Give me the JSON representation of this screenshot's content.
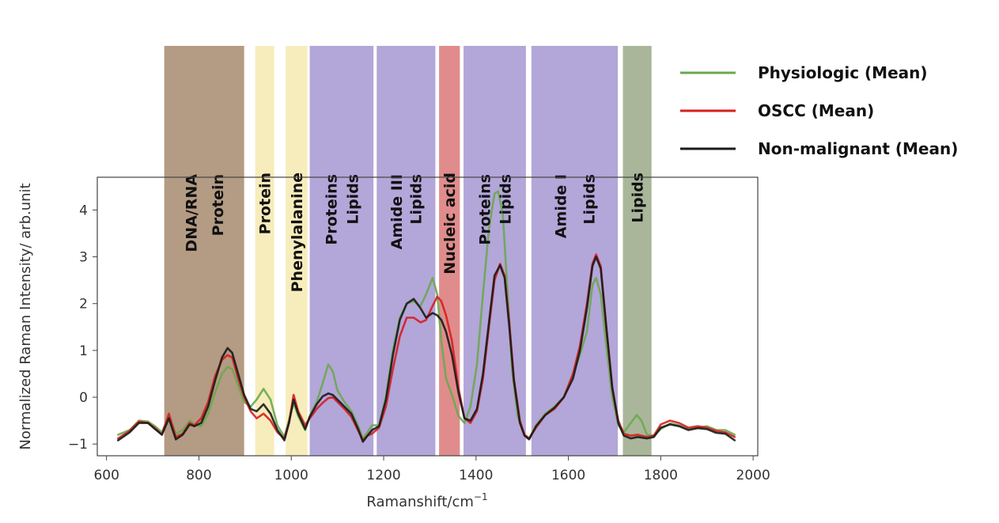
{
  "chart_data": {
    "type": "line",
    "xlabel": "Ramanshift/cm",
    "xlabel_superscript": "−1",
    "ylabel": "Normalized Raman Intensity/ arb.unit",
    "xlim": [
      580,
      2010
    ],
    "ylim": [
      -1.25,
      4.7
    ],
    "xticks": [
      600,
      800,
      1000,
      1200,
      1400,
      1600,
      1800,
      2000
    ],
    "yticks": [
      -1,
      0,
      1,
      2,
      3,
      4
    ],
    "grid": false,
    "legend_position": "outside-top-right",
    "bands": [
      {
        "from": 725,
        "to": 898,
        "color": "#b49b83",
        "labels": [
          "DNA/RNA",
          "Protein"
        ]
      },
      {
        "from": 922,
        "to": 963,
        "color": "#f7ecbb",
        "labels": [
          "Protein"
        ]
      },
      {
        "from": 988,
        "to": 1035,
        "color": "#f7ecbb",
        "labels": [
          "Phenylalanine"
        ]
      },
      {
        "from": 1040,
        "to": 1178,
        "color": "#b3a6d9",
        "labels": [
          "Proteins",
          "Lipids"
        ]
      },
      {
        "from": 1185,
        "to": 1312,
        "color": "#b3a6d9",
        "labels": [
          "Amide III",
          "Lipids"
        ]
      },
      {
        "from": 1320,
        "to": 1365,
        "color": "#e08c8c",
        "labels": [
          "Nucleic acid"
        ]
      },
      {
        "from": 1373,
        "to": 1508,
        "color": "#b3a6d9",
        "labels": [
          "Proteins",
          "Lipids"
        ]
      },
      {
        "from": 1520,
        "to": 1707,
        "color": "#b3a6d9",
        "labels": [
          "Amide I",
          "Lipids"
        ]
      },
      {
        "from": 1718,
        "to": 1780,
        "color": "#a9b69a",
        "labels": [
          "Lipids"
        ]
      }
    ],
    "series": [
      {
        "name": "Physiologic (Mean)",
        "color": "#6aa84f",
        "points": [
          [
            625,
            -0.8
          ],
          [
            650,
            -0.7
          ],
          [
            670,
            -0.5
          ],
          [
            690,
            -0.52
          ],
          [
            705,
            -0.62
          ],
          [
            720,
            -0.75
          ],
          [
            735,
            -0.4
          ],
          [
            750,
            -0.78
          ],
          [
            765,
            -0.7
          ],
          [
            780,
            -0.5
          ],
          [
            790,
            -0.58
          ],
          [
            805,
            -0.62
          ],
          [
            820,
            -0.35
          ],
          [
            835,
            0.1
          ],
          [
            850,
            0.5
          ],
          [
            862,
            0.65
          ],
          [
            872,
            0.6
          ],
          [
            885,
            0.25
          ],
          [
            898,
            -0.1
          ],
          [
            912,
            -0.2
          ],
          [
            925,
            -0.05
          ],
          [
            940,
            0.18
          ],
          [
            955,
            -0.05
          ],
          [
            970,
            -0.6
          ],
          [
            985,
            -0.85
          ],
          [
            995,
            -0.5
          ],
          [
            1005,
            -0.12
          ],
          [
            1015,
            -0.4
          ],
          [
            1030,
            -0.7
          ],
          [
            1040,
            -0.4
          ],
          [
            1055,
            -0.1
          ],
          [
            1068,
            0.3
          ],
          [
            1080,
            0.7
          ],
          [
            1090,
            0.55
          ],
          [
            1100,
            0.15
          ],
          [
            1115,
            -0.1
          ],
          [
            1130,
            -0.3
          ],
          [
            1145,
            -0.62
          ],
          [
            1155,
            -0.88
          ],
          [
            1165,
            -0.75
          ],
          [
            1175,
            -0.6
          ],
          [
            1190,
            -0.6
          ],
          [
            1205,
            0.0
          ],
          [
            1220,
            1.0
          ],
          [
            1235,
            1.7
          ],
          [
            1250,
            2.0
          ],
          [
            1265,
            2.05
          ],
          [
            1280,
            1.95
          ],
          [
            1292,
            2.2
          ],
          [
            1306,
            2.55
          ],
          [
            1316,
            2.2
          ],
          [
            1325,
            1.2
          ],
          [
            1335,
            0.4
          ],
          [
            1348,
            0.05
          ],
          [
            1362,
            -0.4
          ],
          [
            1375,
            -0.55
          ],
          [
            1388,
            -0.2
          ],
          [
            1402,
            0.7
          ],
          [
            1415,
            2.2
          ],
          [
            1428,
            3.6
          ],
          [
            1440,
            4.35
          ],
          [
            1448,
            4.4
          ],
          [
            1458,
            3.9
          ],
          [
            1468,
            2.3
          ],
          [
            1478,
            0.6
          ],
          [
            1490,
            -0.4
          ],
          [
            1505,
            -0.8
          ],
          [
            1515,
            -0.88
          ],
          [
            1530,
            -0.6
          ],
          [
            1550,
            -0.35
          ],
          [
            1570,
            -0.2
          ],
          [
            1590,
            0.0
          ],
          [
            1610,
            0.5
          ],
          [
            1625,
            0.9
          ],
          [
            1640,
            1.4
          ],
          [
            1652,
            2.4
          ],
          [
            1660,
            2.55
          ],
          [
            1670,
            2.2
          ],
          [
            1682,
            1.1
          ],
          [
            1695,
            0.0
          ],
          [
            1708,
            -0.6
          ],
          [
            1720,
            -0.75
          ],
          [
            1735,
            -0.55
          ],
          [
            1748,
            -0.38
          ],
          [
            1758,
            -0.5
          ],
          [
            1770,
            -0.8
          ],
          [
            1785,
            -0.82
          ],
          [
            1800,
            -0.68
          ],
          [
            1820,
            -0.56
          ],
          [
            1840,
            -0.6
          ],
          [
            1860,
            -0.68
          ],
          [
            1880,
            -0.65
          ],
          [
            1900,
            -0.62
          ],
          [
            1920,
            -0.7
          ],
          [
            1940,
            -0.7
          ],
          [
            1960,
            -0.8
          ]
        ]
      },
      {
        "name": "OSCC (Mean)",
        "color": "#d61f1f",
        "points": [
          [
            625,
            -0.88
          ],
          [
            650,
            -0.72
          ],
          [
            670,
            -0.52
          ],
          [
            690,
            -0.55
          ],
          [
            705,
            -0.66
          ],
          [
            720,
            -0.8
          ],
          [
            735,
            -0.35
          ],
          [
            750,
            -0.85
          ],
          [
            765,
            -0.78
          ],
          [
            780,
            -0.55
          ],
          [
            790,
            -0.6
          ],
          [
            805,
            -0.45
          ],
          [
            820,
            -0.1
          ],
          [
            835,
            0.45
          ],
          [
            850,
            0.8
          ],
          [
            862,
            0.9
          ],
          [
            872,
            0.85
          ],
          [
            885,
            0.4
          ],
          [
            898,
            0.0
          ],
          [
            912,
            -0.3
          ],
          [
            925,
            -0.45
          ],
          [
            940,
            -0.35
          ],
          [
            955,
            -0.5
          ],
          [
            970,
            -0.75
          ],
          [
            985,
            -0.88
          ],
          [
            995,
            -0.55
          ],
          [
            1005,
            0.05
          ],
          [
            1015,
            -0.3
          ],
          [
            1030,
            -0.6
          ],
          [
            1040,
            -0.45
          ],
          [
            1055,
            -0.25
          ],
          [
            1068,
            -0.12
          ],
          [
            1080,
            -0.02
          ],
          [
            1090,
            0.0
          ],
          [
            1100,
            -0.1
          ],
          [
            1115,
            -0.25
          ],
          [
            1130,
            -0.42
          ],
          [
            1145,
            -0.72
          ],
          [
            1155,
            -0.92
          ],
          [
            1165,
            -0.82
          ],
          [
            1175,
            -0.78
          ],
          [
            1190,
            -0.65
          ],
          [
            1205,
            -0.2
          ],
          [
            1220,
            0.6
          ],
          [
            1235,
            1.3
          ],
          [
            1250,
            1.7
          ],
          [
            1265,
            1.7
          ],
          [
            1280,
            1.6
          ],
          [
            1292,
            1.65
          ],
          [
            1306,
            1.95
          ],
          [
            1316,
            2.15
          ],
          [
            1325,
            2.05
          ],
          [
            1335,
            1.75
          ],
          [
            1348,
            1.2
          ],
          [
            1362,
            0.2
          ],
          [
            1375,
            -0.45
          ],
          [
            1388,
            -0.55
          ],
          [
            1402,
            -0.3
          ],
          [
            1415,
            0.4
          ],
          [
            1428,
            1.5
          ],
          [
            1440,
            2.5
          ],
          [
            1452,
            2.85
          ],
          [
            1462,
            2.6
          ],
          [
            1472,
            1.6
          ],
          [
            1482,
            0.4
          ],
          [
            1495,
            -0.5
          ],
          [
            1505,
            -0.8
          ],
          [
            1515,
            -0.88
          ],
          [
            1530,
            -0.65
          ],
          [
            1550,
            -0.38
          ],
          [
            1570,
            -0.25
          ],
          [
            1590,
            0.0
          ],
          [
            1610,
            0.5
          ],
          [
            1625,
            1.1
          ],
          [
            1640,
            2.0
          ],
          [
            1652,
            2.85
          ],
          [
            1660,
            3.05
          ],
          [
            1670,
            2.8
          ],
          [
            1682,
            1.5
          ],
          [
            1695,
            0.2
          ],
          [
            1708,
            -0.5
          ],
          [
            1720,
            -0.78
          ],
          [
            1735,
            -0.82
          ],
          [
            1750,
            -0.8
          ],
          [
            1770,
            -0.85
          ],
          [
            1785,
            -0.82
          ],
          [
            1800,
            -0.58
          ],
          [
            1820,
            -0.5
          ],
          [
            1840,
            -0.55
          ],
          [
            1860,
            -0.65
          ],
          [
            1880,
            -0.62
          ],
          [
            1900,
            -0.65
          ],
          [
            1920,
            -0.72
          ],
          [
            1940,
            -0.75
          ],
          [
            1960,
            -0.85
          ]
        ]
      },
      {
        "name": "Non-malignant (Mean)",
        "color": "#1a1a1a",
        "points": [
          [
            625,
            -0.92
          ],
          [
            650,
            -0.75
          ],
          [
            670,
            -0.55
          ],
          [
            690,
            -0.55
          ],
          [
            705,
            -0.68
          ],
          [
            720,
            -0.8
          ],
          [
            735,
            -0.45
          ],
          [
            750,
            -0.9
          ],
          [
            765,
            -0.8
          ],
          [
            780,
            -0.58
          ],
          [
            790,
            -0.62
          ],
          [
            805,
            -0.55
          ],
          [
            820,
            -0.2
          ],
          [
            835,
            0.35
          ],
          [
            850,
            0.85
          ],
          [
            862,
            1.05
          ],
          [
            872,
            0.95
          ],
          [
            885,
            0.5
          ],
          [
            898,
            0.05
          ],
          [
            912,
            -0.25
          ],
          [
            925,
            -0.3
          ],
          [
            940,
            -0.15
          ],
          [
            955,
            -0.35
          ],
          [
            970,
            -0.7
          ],
          [
            985,
            -0.92
          ],
          [
            995,
            -0.55
          ],
          [
            1005,
            -0.05
          ],
          [
            1015,
            -0.35
          ],
          [
            1030,
            -0.68
          ],
          [
            1040,
            -0.42
          ],
          [
            1055,
            -0.15
          ],
          [
            1068,
            0.02
          ],
          [
            1080,
            0.08
          ],
          [
            1090,
            0.05
          ],
          [
            1100,
            -0.05
          ],
          [
            1115,
            -0.2
          ],
          [
            1130,
            -0.35
          ],
          [
            1145,
            -0.68
          ],
          [
            1155,
            -0.95
          ],
          [
            1165,
            -0.82
          ],
          [
            1175,
            -0.7
          ],
          [
            1190,
            -0.62
          ],
          [
            1205,
            -0.05
          ],
          [
            1220,
            0.9
          ],
          [
            1235,
            1.65
          ],
          [
            1250,
            2.0
          ],
          [
            1265,
            2.1
          ],
          [
            1280,
            1.9
          ],
          [
            1292,
            1.7
          ],
          [
            1306,
            1.8
          ],
          [
            1316,
            1.75
          ],
          [
            1325,
            1.65
          ],
          [
            1335,
            1.4
          ],
          [
            1348,
            0.9
          ],
          [
            1362,
            0.1
          ],
          [
            1375,
            -0.45
          ],
          [
            1388,
            -0.5
          ],
          [
            1402,
            -0.25
          ],
          [
            1415,
            0.5
          ],
          [
            1428,
            1.6
          ],
          [
            1440,
            2.6
          ],
          [
            1452,
            2.82
          ],
          [
            1462,
            2.55
          ],
          [
            1472,
            1.5
          ],
          [
            1482,
            0.35
          ],
          [
            1495,
            -0.55
          ],
          [
            1505,
            -0.82
          ],
          [
            1515,
            -0.9
          ],
          [
            1530,
            -0.62
          ],
          [
            1550,
            -0.38
          ],
          [
            1570,
            -0.22
          ],
          [
            1590,
            0.0
          ],
          [
            1610,
            0.4
          ],
          [
            1625,
            1.0
          ],
          [
            1640,
            1.9
          ],
          [
            1652,
            2.8
          ],
          [
            1660,
            3.0
          ],
          [
            1670,
            2.75
          ],
          [
            1682,
            1.5
          ],
          [
            1695,
            0.2
          ],
          [
            1708,
            -0.55
          ],
          [
            1720,
            -0.82
          ],
          [
            1735,
            -0.88
          ],
          [
            1750,
            -0.85
          ],
          [
            1770,
            -0.88
          ],
          [
            1785,
            -0.85
          ],
          [
            1800,
            -0.65
          ],
          [
            1820,
            -0.58
          ],
          [
            1840,
            -0.62
          ],
          [
            1860,
            -0.7
          ],
          [
            1880,
            -0.66
          ],
          [
            1900,
            -0.68
          ],
          [
            1920,
            -0.76
          ],
          [
            1940,
            -0.78
          ],
          [
            1960,
            -0.92
          ]
        ]
      }
    ]
  }
}
